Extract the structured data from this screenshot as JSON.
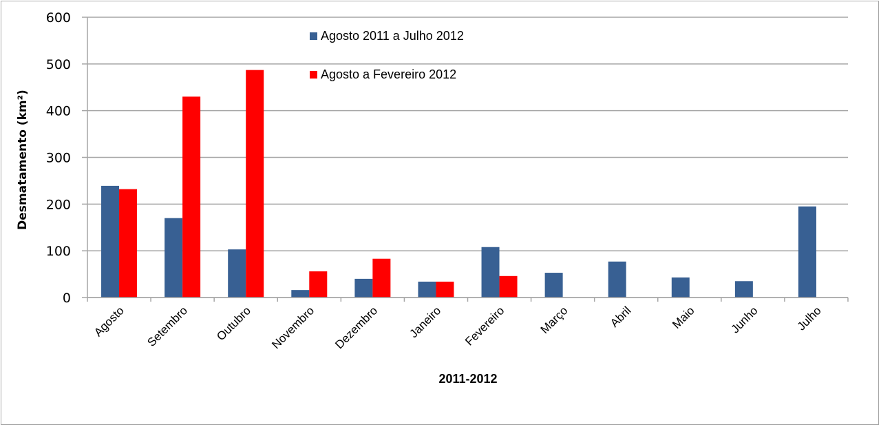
{
  "chart_data": {
    "type": "bar",
    "title": "",
    "xlabel": "2011-2012",
    "ylabel": "Desmatamento (km²)",
    "ylim": [
      0,
      600
    ],
    "yticks": [
      0,
      100,
      200,
      300,
      400,
      500,
      600
    ],
    "grid": true,
    "legend_position": "top-center-inside",
    "categories": [
      "Agosto",
      "Setembro",
      "Outubro",
      "Novembro",
      "Dezembro",
      "Janeiro",
      "Fevereiro",
      "Março",
      "Abril",
      "Maio",
      "Junho",
      "Julho"
    ],
    "series": [
      {
        "name": "Agosto 2011 a Julho 2012",
        "color": "#386093",
        "values": [
          239,
          170,
          103,
          16,
          40,
          34,
          108,
          53,
          77,
          43,
          35,
          195
        ]
      },
      {
        "name": "Agosto a Fevereiro 2012",
        "color": "#ff0000",
        "values": [
          232,
          430,
          487,
          56,
          83,
          34,
          46,
          null,
          null,
          null,
          null,
          null
        ]
      }
    ]
  }
}
